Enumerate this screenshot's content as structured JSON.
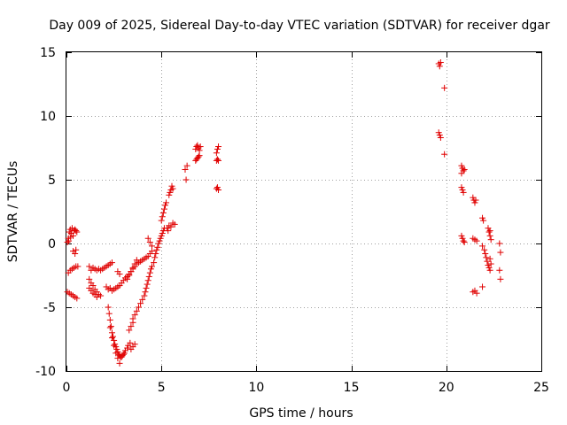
{
  "chart_data": {
    "type": "scatter",
    "title": "Day 009 of 2025, Sidereal Day-to-day VTEC variation (SDTVAR) for receiver dgar",
    "xlabel": "GPS time / hours",
    "ylabel": "SDTVAR / TECUs",
    "xlim": [
      0,
      25
    ],
    "ylim": [
      -10,
      15
    ],
    "xticks": [
      0,
      5,
      10,
      15,
      20,
      25
    ],
    "yticks": [
      -10,
      -5,
      0,
      5,
      10,
      15
    ],
    "grid": true,
    "marker": "+",
    "color": "#e00000",
    "series": [
      {
        "name": "SDTVAR",
        "points": [
          [
            0.05,
            0.1
          ],
          [
            0.1,
            0.4
          ],
          [
            0.15,
            0.9
          ],
          [
            0.2,
            1.1
          ],
          [
            0.25,
            0.8
          ],
          [
            0.3,
            1.2
          ],
          [
            0.35,
            0.6
          ],
          [
            0.4,
            1.0
          ],
          [
            0.45,
            1.1
          ],
          [
            0.5,
            1.0
          ],
          [
            0.55,
            0.9
          ],
          [
            0.12,
            0.2
          ],
          [
            0.22,
            0.5
          ],
          [
            0.35,
            -0.6
          ],
          [
            0.45,
            -0.8
          ],
          [
            0.5,
            -0.5
          ],
          [
            0.1,
            -2.3
          ],
          [
            0.2,
            -2.1
          ],
          [
            0.3,
            -2.0
          ],
          [
            0.4,
            -1.9
          ],
          [
            0.5,
            -1.8
          ],
          [
            0.6,
            -1.8
          ],
          [
            0.05,
            -3.8
          ],
          [
            0.15,
            -3.9
          ],
          [
            0.25,
            -4.0
          ],
          [
            0.35,
            -4.1
          ],
          [
            0.45,
            -4.2
          ],
          [
            0.55,
            -4.3
          ],
          [
            1.2,
            -1.8
          ],
          [
            1.3,
            -2.1
          ],
          [
            1.4,
            -1.9
          ],
          [
            1.5,
            -2.0
          ],
          [
            1.6,
            -2.1
          ],
          [
            1.7,
            -2.0
          ],
          [
            1.8,
            -2.1
          ],
          [
            1.9,
            -2.0
          ],
          [
            2.0,
            -1.9
          ],
          [
            2.1,
            -1.8
          ],
          [
            2.2,
            -1.7
          ],
          [
            2.3,
            -1.6
          ],
          [
            2.4,
            -1.5
          ],
          [
            1.2,
            -2.8
          ],
          [
            1.3,
            -3.1
          ],
          [
            1.4,
            -3.3
          ],
          [
            1.5,
            -3.6
          ],
          [
            1.6,
            -3.8
          ],
          [
            1.7,
            -4.0
          ],
          [
            1.8,
            -4.1
          ],
          [
            1.2,
            -3.5
          ],
          [
            1.3,
            -3.7
          ],
          [
            1.4,
            -3.9
          ],
          [
            1.5,
            -4.0
          ],
          [
            1.6,
            -4.2
          ],
          [
            2.1,
            -3.4
          ],
          [
            2.2,
            -3.6
          ],
          [
            2.3,
            -3.5
          ],
          [
            2.4,
            -3.7
          ],
          [
            2.5,
            -3.6
          ],
          [
            2.6,
            -3.5
          ],
          [
            2.7,
            -3.4
          ],
          [
            2.8,
            -3.3
          ],
          [
            2.9,
            -3.1
          ],
          [
            3.0,
            -2.9
          ],
          [
            3.1,
            -2.7
          ],
          [
            3.2,
            -2.6
          ],
          [
            3.3,
            -2.4
          ],
          [
            3.4,
            -2.2
          ],
          [
            3.5,
            -2.0
          ],
          [
            3.6,
            -1.8
          ],
          [
            3.7,
            -1.6
          ],
          [
            3.8,
            -1.5
          ],
          [
            3.9,
            -1.4
          ],
          [
            4.0,
            -1.3
          ],
          [
            4.1,
            -1.2
          ],
          [
            4.2,
            -1.1
          ],
          [
            4.3,
            -1.0
          ],
          [
            4.4,
            -0.8
          ],
          [
            4.5,
            -0.6
          ],
          [
            2.7,
            -2.2
          ],
          [
            2.8,
            -2.4
          ],
          [
            2.2,
            -5.0
          ],
          [
            2.25,
            -5.5
          ],
          [
            2.3,
            -6.0
          ],
          [
            2.35,
            -6.5
          ],
          [
            2.4,
            -7.0
          ],
          [
            2.45,
            -7.3
          ],
          [
            2.5,
            -7.6
          ],
          [
            2.55,
            -7.9
          ],
          [
            2.6,
            -8.1
          ],
          [
            2.65,
            -8.3
          ],
          [
            2.7,
            -8.5
          ],
          [
            2.75,
            -8.7
          ],
          [
            2.8,
            -8.8
          ],
          [
            2.85,
            -8.9
          ],
          [
            2.9,
            -8.9
          ],
          [
            2.95,
            -8.8
          ],
          [
            3.0,
            -8.7
          ],
          [
            3.05,
            -8.6
          ],
          [
            3.1,
            -8.4
          ],
          [
            3.2,
            -8.2
          ],
          [
            3.25,
            -8.0
          ],
          [
            3.35,
            -7.8
          ],
          [
            2.3,
            -6.6
          ],
          [
            2.4,
            -7.4
          ],
          [
            2.5,
            -8.0
          ],
          [
            2.6,
            -8.6
          ],
          [
            2.7,
            -9.0
          ],
          [
            2.8,
            -9.4
          ],
          [
            3.4,
            -8.3
          ],
          [
            3.5,
            -8.1
          ],
          [
            3.6,
            -7.9
          ],
          [
            3.3,
            -6.8
          ],
          [
            3.4,
            -6.5
          ],
          [
            3.5,
            -6.2
          ],
          [
            3.5,
            -5.9
          ],
          [
            3.6,
            -5.6
          ],
          [
            3.7,
            -5.3
          ],
          [
            3.8,
            -5.0
          ],
          [
            3.9,
            -4.7
          ],
          [
            4.0,
            -4.4
          ],
          [
            4.1,
            -4.1
          ],
          [
            4.15,
            -3.8
          ],
          [
            4.2,
            -3.5
          ],
          [
            4.25,
            -3.2
          ],
          [
            4.3,
            -2.9
          ],
          [
            4.35,
            -2.6
          ],
          [
            4.4,
            -2.3
          ],
          [
            4.45,
            -2.0
          ],
          [
            4.5,
            -1.8
          ],
          [
            4.6,
            -1.5
          ],
          [
            4.65,
            -1.1
          ],
          [
            4.7,
            -0.8
          ],
          [
            4.75,
            -0.5
          ],
          [
            4.8,
            -0.3
          ],
          [
            4.85,
            0.0
          ],
          [
            4.9,
            0.2
          ],
          [
            4.95,
            0.4
          ],
          [
            5.0,
            0.6
          ],
          [
            5.05,
            0.8
          ],
          [
            5.1,
            1.0
          ],
          [
            5.15,
            1.2
          ],
          [
            3.2,
            -2.8
          ],
          [
            3.3,
            -2.5
          ],
          [
            3.4,
            -2.2
          ],
          [
            3.5,
            -1.9
          ],
          [
            3.6,
            -1.6
          ],
          [
            3.7,
            -1.3
          ],
          [
            4.3,
            0.4
          ],
          [
            4.4,
            0.1
          ],
          [
            4.5,
            -0.2
          ],
          [
            5.0,
            1.8
          ],
          [
            5.05,
            2.1
          ],
          [
            5.1,
            2.4
          ],
          [
            5.15,
            2.7
          ],
          [
            5.2,
            3.0
          ],
          [
            5.25,
            3.2
          ],
          [
            5.3,
            1.2
          ],
          [
            5.35,
            1.0
          ],
          [
            5.4,
            1.4
          ],
          [
            5.5,
            1.3
          ],
          [
            5.6,
            1.6
          ],
          [
            5.7,
            1.5
          ],
          [
            5.4,
            3.8
          ],
          [
            5.45,
            4.0
          ],
          [
            5.5,
            4.2
          ],
          [
            5.55,
            4.5
          ],
          [
            5.6,
            4.3
          ],
          [
            6.3,
            5.0
          ],
          [
            6.25,
            5.8
          ],
          [
            6.35,
            6.1
          ],
          [
            6.8,
            6.5
          ],
          [
            6.85,
            6.6
          ],
          [
            6.9,
            6.7
          ],
          [
            6.95,
            6.8
          ],
          [
            7.0,
            6.9
          ],
          [
            6.8,
            7.4
          ],
          [
            6.85,
            7.6
          ],
          [
            6.9,
            7.7
          ],
          [
            6.95,
            7.5
          ],
          [
            7.0,
            7.3
          ],
          [
            7.05,
            7.6
          ],
          [
            7.9,
            7.1
          ],
          [
            7.95,
            7.4
          ],
          [
            8.0,
            7.6
          ],
          [
            7.9,
            6.5
          ],
          [
            7.95,
            6.6
          ],
          [
            8.0,
            6.5
          ],
          [
            7.9,
            4.3
          ],
          [
            7.95,
            4.4
          ],
          [
            8.0,
            4.2
          ],
          [
            19.6,
            14.1
          ],
          [
            19.65,
            13.9
          ],
          [
            19.7,
            14.2
          ],
          [
            19.9,
            12.2
          ],
          [
            19.6,
            8.7
          ],
          [
            19.65,
            8.5
          ],
          [
            19.7,
            8.3
          ],
          [
            19.9,
            7.0
          ],
          [
            20.8,
            6.1
          ],
          [
            20.85,
            5.9
          ],
          [
            20.9,
            5.7
          ],
          [
            20.8,
            5.5
          ],
          [
            20.95,
            5.8
          ],
          [
            20.8,
            4.4
          ],
          [
            20.85,
            4.2
          ],
          [
            20.9,
            4.0
          ],
          [
            20.8,
            0.6
          ],
          [
            20.85,
            0.4
          ],
          [
            20.9,
            0.2
          ],
          [
            20.95,
            0.1
          ],
          [
            21.4,
            3.6
          ],
          [
            21.45,
            3.4
          ],
          [
            21.5,
            3.2
          ],
          [
            21.55,
            3.4
          ],
          [
            21.4,
            0.4
          ],
          [
            21.5,
            0.3
          ],
          [
            21.6,
            0.2
          ],
          [
            21.5,
            -3.7
          ],
          [
            21.6,
            -3.9
          ],
          [
            21.4,
            -3.8
          ],
          [
            21.9,
            2.0
          ],
          [
            21.95,
            1.8
          ],
          [
            21.9,
            -0.2
          ],
          [
            22.0,
            -0.5
          ],
          [
            22.05,
            -0.8
          ],
          [
            22.1,
            -1.1
          ],
          [
            22.15,
            -1.4
          ],
          [
            22.2,
            -1.7
          ],
          [
            22.25,
            -1.9
          ],
          [
            22.3,
            -2.1
          ],
          [
            22.35,
            -1.6
          ],
          [
            22.3,
            -1.2
          ],
          [
            22.2,
            1.2
          ],
          [
            22.25,
            0.9
          ],
          [
            22.3,
            0.6
          ],
          [
            22.35,
            0.3
          ],
          [
            22.3,
            1.0
          ],
          [
            21.9,
            -3.4
          ],
          [
            22.8,
            0.0
          ],
          [
            22.85,
            -0.7
          ],
          [
            22.8,
            -2.1
          ],
          [
            22.85,
            -2.8
          ]
        ]
      }
    ]
  }
}
